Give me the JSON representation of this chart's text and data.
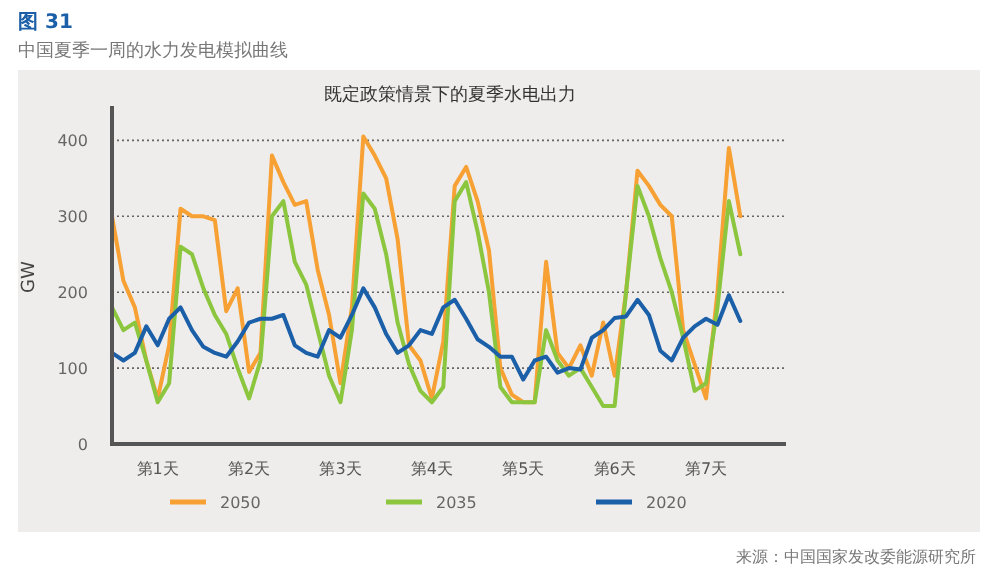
{
  "chart_data": {
    "type": "line",
    "title": "既定政策情景下的夏季水电出力",
    "annotations": [
      "图 31",
      "中国夏季一周的水力发电模拟曲线",
      "来源：中国国家发改委能源研究所"
    ],
    "ylabel": "GW",
    "ylim": [
      0,
      440
    ],
    "yticks": [
      0,
      100,
      200,
      300,
      400
    ],
    "categories": [
      null,
      null,
      null,
      null,
      "第1天",
      null,
      null,
      null,
      null,
      null,
      null,
      null,
      "第2天",
      null,
      null,
      null,
      null,
      null,
      null,
      null,
      "第3天",
      null,
      null,
      null,
      null,
      null,
      null,
      null,
      "第4天",
      null,
      null,
      null,
      null,
      null,
      null,
      null,
      "第5天",
      null,
      null,
      null,
      null,
      null,
      null,
      null,
      "第6天",
      null,
      null,
      null,
      null,
      null,
      null,
      null,
      "第7天",
      null,
      null,
      null,
      null,
      null,
      null,
      null
    ],
    "grid": "y",
    "legend": "bottom",
    "marker": "none",
    "line_style": "solid",
    "series": [
      {
        "name": "2050",
        "color": "#f7a033",
        "values": [
          300,
          215,
          180,
          110,
          60,
          130,
          310,
          300,
          300,
          295,
          175,
          205,
          95,
          120,
          380,
          345,
          315,
          320,
          230,
          170,
          80,
          180,
          405,
          380,
          350,
          270,
          130,
          110,
          60,
          135,
          340,
          365,
          320,
          255,
          100,
          65,
          55,
          55,
          240,
          120,
          100,
          130,
          90,
          160,
          90,
          200,
          360,
          340,
          315,
          300,
          150,
          105,
          60,
          200,
          390,
          300,
          null,
          null,
          null,
          null
        ]
      },
      {
        "name": "2035",
        "color": "#8cc63f",
        "values": [
          180,
          150,
          160,
          110,
          55,
          80,
          260,
          250,
          205,
          170,
          145,
          100,
          60,
          110,
          300,
          320,
          240,
          210,
          150,
          90,
          55,
          150,
          330,
          310,
          250,
          160,
          105,
          70,
          55,
          75,
          320,
          345,
          280,
          200,
          75,
          55,
          55,
          55,
          150,
          110,
          90,
          100,
          75,
          50,
          50,
          200,
          340,
          300,
          245,
          200,
          140,
          70,
          80,
          180,
          320,
          250,
          null,
          null,
          null,
          null
        ]
      },
      {
        "name": "2020",
        "color": "#1a5fa8",
        "values": [
          120,
          110,
          120,
          155,
          130,
          165,
          180,
          150,
          128,
          120,
          115,
          135,
          160,
          165,
          165,
          170,
          130,
          120,
          115,
          150,
          140,
          170,
          205,
          180,
          145,
          120,
          130,
          150,
          145,
          180,
          190,
          165,
          138,
          128,
          115,
          115,
          85,
          110,
          115,
          94,
          100,
          98,
          140,
          150,
          166,
          168,
          190,
          170,
          123,
          110,
          140,
          155,
          165,
          157,
          196,
          162,
          null,
          null,
          null,
          null
        ]
      }
    ]
  }
}
